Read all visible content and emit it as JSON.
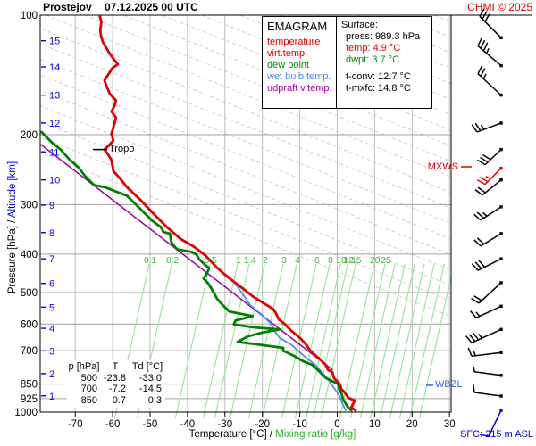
{
  "header": {
    "station": "Prostejov",
    "datetime": "07.12.2025 00 UTC",
    "copyright": "CHMI © 2025"
  },
  "legend": {
    "title": "EMAGRAM",
    "items": [
      {
        "label": "temperature",
        "color": "#dd0000"
      },
      {
        "label": "virt.temp.",
        "color": "#dd0000"
      },
      {
        "label": "dew point",
        "color": "#008800"
      },
      {
        "label": "wet bulb temp.",
        "color": "#4a86e8"
      },
      {
        "label": "udpraft v.temp.",
        "color": "#aa00aa"
      }
    ]
  },
  "surface": {
    "title": "Surface:",
    "rows": [
      {
        "text": "press: 989.3 hPa",
        "color": "#000000",
        "gap": false
      },
      {
        "text": "temp: 4.9 °C",
        "color": "#dd0000",
        "gap": false
      },
      {
        "text": "dwpt: 3.7 °C",
        "color": "#008800",
        "gap": false
      },
      {
        "text": "t-conv: 12.7 °C",
        "color": "#000000",
        "gap": true
      },
      {
        "text": "t-mxfc: 14.8 °C",
        "color": "#000000",
        "gap": false
      }
    ]
  },
  "readout_table": {
    "header": [
      "p [hPa]",
      "T",
      "Td [°C]"
    ],
    "rows": [
      [
        "500",
        "-23.8",
        "-33.0"
      ],
      [
        "700",
        "-7.2",
        "-14.5"
      ],
      [
        "850",
        "0.7",
        "0.3"
      ]
    ]
  },
  "axes": {
    "y_left_black": "Pressure [hPa]",
    "y_left_sep": "  /  ",
    "y_left_blue": "Altitude [km]",
    "x_bottom_black": "Temperature [°C]  /  ",
    "x_bottom_green": "Mixing ratio [g/kg]"
  },
  "annotations": {
    "tropo": "Tropo",
    "mxws": "MXWS",
    "wbzl": "WBZL",
    "sfc": "SFC: 215 m ASL"
  },
  "colors": {
    "copyright_red": "#e00000",
    "mxws_red": "#dd0000",
    "wbzl_blue": "#3366dd",
    "sfc_blue": "#0000dd",
    "axis_blue": "#0000ee",
    "mixing_line_green": "#9ce49c",
    "mixing_text_green": "#3cb53c",
    "x_green": "#2db52d",
    "grid_h": "#a0a0a0",
    "grid_v": "#bdbdbd",
    "grid_diag": "#cfcfcf"
  },
  "chart_data": {
    "type": "line",
    "title": "EMAGRAM sounding Prostejov 07.12.2025 00 UTC",
    "x_axis": {
      "label": "Temperature [°C]",
      "min": -79,
      "max": 30.5,
      "ticks": [
        -70,
        -60,
        -50,
        -40,
        -30,
        -20,
        -10,
        0,
        10,
        20,
        30
      ]
    },
    "y_axis": {
      "label": "Pressure [hPa]",
      "scale": "log",
      "min": 100,
      "max": 1000,
      "ticks": [
        100,
        200,
        300,
        400,
        500,
        600,
        700,
        850,
        925,
        1000
      ]
    },
    "altitude_ticks": [
      {
        "km": 15,
        "p": 116
      },
      {
        "km": 14,
        "p": 135
      },
      {
        "km": 13,
        "p": 159
      },
      {
        "km": 12,
        "p": 187
      },
      {
        "km": 11,
        "p": 221
      },
      {
        "km": 10,
        "p": 260
      },
      {
        "km": 9,
        "p": 301
      },
      {
        "km": 8,
        "p": 353
      },
      {
        "km": 7,
        "p": 411
      },
      {
        "km": 6,
        "p": 474
      },
      {
        "km": 5,
        "p": 544
      },
      {
        "km": 4,
        "p": 615
      },
      {
        "km": 3,
        "p": 701
      },
      {
        "km": 2,
        "p": 800
      },
      {
        "km": 1,
        "p": 910
      }
    ],
    "mixing_ratio": {
      "label_pressure": 415,
      "labels": [
        {
          "w": "0.1",
          "t": -50.0
        },
        {
          "w": "0.2",
          "t": -44.0
        },
        {
          "w": "0.5",
          "t": -33.8
        },
        {
          "w": "1",
          "t": -26.4
        },
        {
          "w": "1.4",
          "t": -23.3
        },
        {
          "w": "2",
          "t": -19.2
        },
        {
          "w": "3",
          "t": -14.2
        },
        {
          "w": "4",
          "t": -10.6
        },
        {
          "w": "6",
          "t": -5.4
        },
        {
          "w": "8",
          "t": -1.8
        },
        {
          "w": "10",
          "t": 1.1
        },
        {
          "w": "12",
          "t": 3.0
        },
        {
          "w": "15",
          "t": 5.1
        },
        {
          "w": "20",
          "t": 10.1
        },
        {
          "w": "25",
          "t": 13.0
        }
      ],
      "extra_lines_t": [
        15.6,
        18.3,
        20.9,
        23.5,
        26.1,
        28.8,
        31.4
      ]
    },
    "tropopause_p": 218,
    "surface_values": {
      "press_hpa": 989.3,
      "temp_c": 4.9,
      "dwpt_c": 3.7,
      "t_conv_c": 12.7,
      "t_mxfc_c": 14.8,
      "station_alt_m": 215
    },
    "series": [
      {
        "name": "temperature",
        "color": "#e00000",
        "width": 2.8,
        "points": [
          [
            100,
            -63.5
          ],
          [
            104,
            -63.0
          ],
          [
            109,
            -63.3
          ],
          [
            113,
            -63.1
          ],
          [
            117,
            -62.6
          ],
          [
            124,
            -61.0
          ],
          [
            128,
            -60.0
          ],
          [
            133,
            -58.6
          ],
          [
            136,
            -60.1
          ],
          [
            139,
            -60.7
          ],
          [
            146,
            -62.2
          ],
          [
            152,
            -61.5
          ],
          [
            158,
            -60.7
          ],
          [
            164,
            -59.1
          ],
          [
            169,
            -59.5
          ],
          [
            175,
            -60.3
          ],
          [
            181,
            -59.1
          ],
          [
            189,
            -59.6
          ],
          [
            199,
            -60.3
          ],
          [
            207,
            -59.8
          ],
          [
            213,
            -61.0
          ],
          [
            218,
            -62.2
          ],
          [
            226,
            -61.0
          ],
          [
            232,
            -60.3
          ],
          [
            247,
            -59.8
          ],
          [
            258,
            -58.0
          ],
          [
            271,
            -56.2
          ],
          [
            293,
            -52.4
          ],
          [
            317,
            -49.0
          ],
          [
            342,
            -45.5
          ],
          [
            366,
            -41.9
          ],
          [
            383,
            -38.3
          ],
          [
            403,
            -35.2
          ],
          [
            431,
            -32.3
          ],
          [
            453,
            -29.7
          ],
          [
            472,
            -27.3
          ],
          [
            500,
            -23.8
          ],
          [
            511,
            -22.6
          ],
          [
            535,
            -19.2
          ],
          [
            551,
            -17.0
          ],
          [
            568,
            -16.2
          ],
          [
            584,
            -15.6
          ],
          [
            600,
            -14.0
          ],
          [
            621,
            -12.5
          ],
          [
            640,
            -10.8
          ],
          [
            654,
            -9.7
          ],
          [
            678,
            -8.2
          ],
          [
            700,
            -7.2
          ],
          [
            720,
            -5.8
          ],
          [
            742,
            -4.2
          ],
          [
            762,
            -3.0
          ],
          [
            782,
            -2.5
          ],
          [
            794,
            -1.3
          ],
          [
            820,
            -0.9
          ],
          [
            850,
            0.7
          ],
          [
            875,
            1.1
          ],
          [
            888,
            1.8
          ],
          [
            905,
            2.4
          ],
          [
            921,
            3.0
          ],
          [
            935,
            4.7
          ],
          [
            955,
            4.2
          ],
          [
            974,
            3.7
          ],
          [
            989,
            4.9
          ]
        ]
      },
      {
        "name": "dew_point",
        "color": "#008000",
        "width": 2.8,
        "points": [
          [
            197,
            -79.0
          ],
          [
            209,
            -76.3
          ],
          [
            218,
            -73.9
          ],
          [
            230,
            -71.7
          ],
          [
            242,
            -69.1
          ],
          [
            254,
            -67.4
          ],
          [
            268,
            -65.0
          ],
          [
            271,
            -62.2
          ],
          [
            285,
            -56.2
          ],
          [
            301,
            -53.6
          ],
          [
            317,
            -51.2
          ],
          [
            329,
            -49.5
          ],
          [
            342,
            -47.1
          ],
          [
            352,
            -46.4
          ],
          [
            355,
            -44.7
          ],
          [
            374,
            -44.3
          ],
          [
            389,
            -42.8
          ],
          [
            395,
            -38.8
          ],
          [
            401,
            -37.6
          ],
          [
            412,
            -36.9
          ],
          [
            425,
            -35.4
          ],
          [
            434,
            -34.2
          ],
          [
            445,
            -34.7
          ],
          [
            461,
            -35.7
          ],
          [
            471,
            -34.7
          ],
          [
            485,
            -33.8
          ],
          [
            500,
            -33.0
          ],
          [
            518,
            -32.1
          ],
          [
            540,
            -30.4
          ],
          [
            558,
            -28.8
          ],
          [
            566,
            -25.5
          ],
          [
            573,
            -22.6
          ],
          [
            588,
            -27.2
          ],
          [
            602,
            -27.6
          ],
          [
            612,
            -22.0
          ],
          [
            619,
            -15.4
          ],
          [
            632,
            -20.5
          ],
          [
            645,
            -24.0
          ],
          [
            665,
            -26.6
          ],
          [
            678,
            -20.0
          ],
          [
            689,
            -14.4
          ],
          [
            700,
            -14.5
          ],
          [
            720,
            -11.8
          ],
          [
            746,
            -8.9
          ],
          [
            761,
            -6.6
          ],
          [
            792,
            -4.7
          ],
          [
            821,
            -3.0
          ],
          [
            850,
            0.3
          ],
          [
            875,
            0.5
          ],
          [
            900,
            1.2
          ],
          [
            925,
            1.5
          ],
          [
            950,
            2.2
          ],
          [
            970,
            2.8
          ],
          [
            989,
            3.7
          ]
        ]
      },
      {
        "name": "wet_bulb",
        "color": "#5588ee",
        "width": 1.8,
        "points": [
          [
            448,
            -30.0
          ],
          [
            465,
            -28.0
          ],
          [
            500,
            -25.5
          ],
          [
            537,
            -23.3
          ],
          [
            568,
            -20.2
          ],
          [
            598,
            -17.8
          ],
          [
            628,
            -16.6
          ],
          [
            650,
            -15.4
          ],
          [
            678,
            -12.1
          ],
          [
            699,
            -10.6
          ],
          [
            731,
            -8.2
          ],
          [
            761,
            -5.8
          ],
          [
            792,
            -4.2
          ],
          [
            825,
            -2.5
          ],
          [
            858,
            -1.3
          ],
          [
            890,
            -0.1
          ],
          [
            919,
            0.8
          ],
          [
            949,
            1.3
          ],
          [
            989,
            2.3
          ]
        ]
      },
      {
        "name": "updraft_virtual_temp",
        "color": "#990099",
        "width": 1.5,
        "points": [
          [
            211,
            -79.4
          ],
          [
            782,
            -1.3
          ]
        ]
      }
    ],
    "wind_barbs": [
      {
        "p": 114,
        "dx": -24,
        "dy": -24,
        "full": 3,
        "half": 0,
        "color": "#000000"
      },
      {
        "p": 134,
        "dx": -26,
        "dy": -22,
        "full": 3,
        "half": 1,
        "color": "#000000"
      },
      {
        "p": 159,
        "dx": -26,
        "dy": -24,
        "full": 2,
        "half": 1,
        "color": "#000000"
      },
      {
        "p": 187,
        "dx": -27,
        "dy": 10,
        "full": 2,
        "half": 1,
        "color": "#000000"
      },
      {
        "p": 218,
        "dx": -18,
        "dy": 17,
        "full": 3,
        "half": 0,
        "color": "#000000"
      },
      {
        "p": 243,
        "dx": -18,
        "dy": 18,
        "full": 2,
        "half": 1,
        "color": "#dd0000"
      },
      {
        "p": 260,
        "dx": -21,
        "dy": 17,
        "full": 2,
        "half": 0,
        "color": "#000000"
      },
      {
        "p": 304,
        "dx": -23,
        "dy": 15,
        "full": 2,
        "half": 1,
        "color": "#000000"
      },
      {
        "p": 355,
        "dx": -23,
        "dy": 14,
        "full": 2,
        "half": 0,
        "color": "#000000"
      },
      {
        "p": 411,
        "dx": -26,
        "dy": 13,
        "full": 3,
        "half": 0,
        "color": "#000000"
      },
      {
        "p": 472,
        "dx": -25,
        "dy": 23,
        "full": 2,
        "half": 0,
        "color": "#000000"
      },
      {
        "p": 541,
        "dx": -28,
        "dy": 13,
        "full": 1,
        "half": 1,
        "color": "#000000"
      },
      {
        "p": 619,
        "dx": -33,
        "dy": 15,
        "full": 3,
        "half": 1,
        "color": "#000000"
      },
      {
        "p": 708,
        "dx": -33,
        "dy": 4,
        "full": 1,
        "half": 1,
        "color": "#000000"
      },
      {
        "p": 808,
        "dx": -30,
        "dy": -4,
        "full": 0,
        "half": 1,
        "color": "#000000"
      },
      {
        "p": 911,
        "dx": -30,
        "dy": -4,
        "full": 1,
        "half": 0,
        "color": "#000000"
      },
      {
        "p": 990,
        "dx": -14,
        "dy": 29,
        "full": 1,
        "half": 0,
        "color": "#0000dd"
      }
    ]
  }
}
